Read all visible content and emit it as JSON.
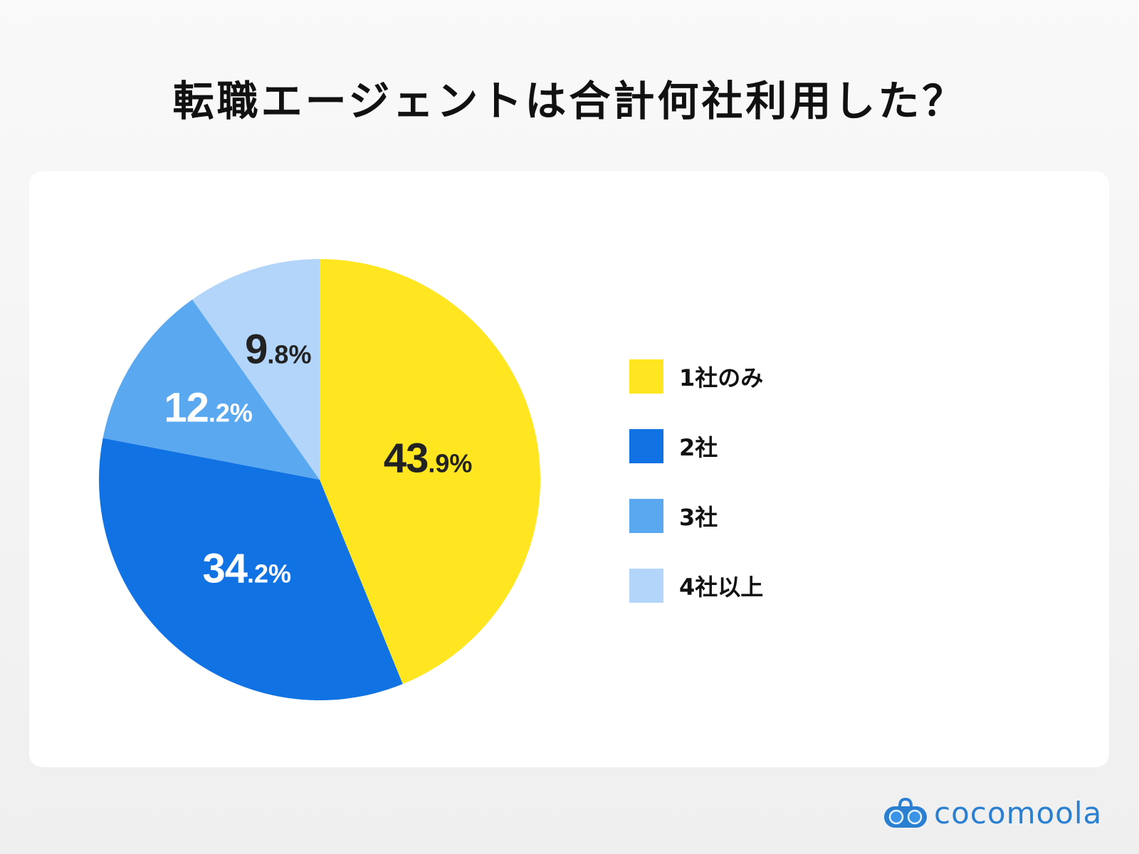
{
  "title": "転職エージェントは合計何社利用した？",
  "chart_data": {
    "type": "pie",
    "title": "転職エージェントは合計何社利用した？",
    "categories": [
      "1社のみ",
      "2社",
      "3社",
      "4社以上"
    ],
    "values": [
      43.9,
      34.2,
      12.2,
      9.8
    ],
    "labels": [
      {
        "int": "43",
        "dec": ".9%"
      },
      {
        "int": "34",
        "dec": ".2%"
      },
      {
        "int": "12",
        "dec": ".2%"
      },
      {
        "int": "9",
        "dec": ".8%"
      }
    ],
    "colors": [
      "#FFE620",
      "#1173E3",
      "#5AA8F0",
      "#B3D5FA"
    ],
    "label_colors": [
      "#222222",
      "#FFFFFF",
      "#FFFFFF",
      "#222222"
    ],
    "start": "top",
    "direction": "clockwise",
    "legend_position": "right"
  },
  "logo": {
    "text": "cocomoola",
    "color": "#2A7FD0"
  }
}
